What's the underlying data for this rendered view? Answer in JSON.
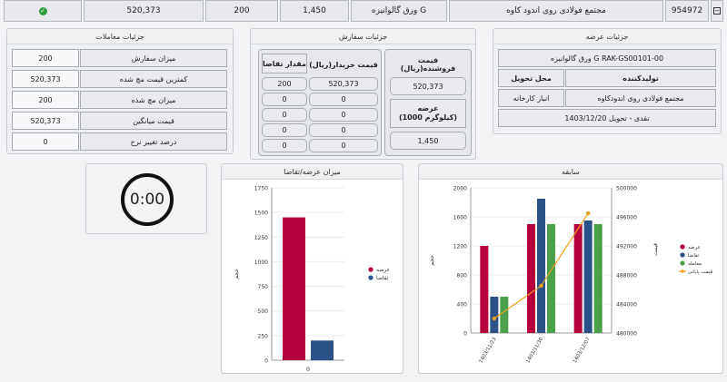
{
  "topbar": {
    "toggle_icon": "minus-square-icon",
    "id": "954972",
    "title": "مجتمع فولادی روی اندود کاوه",
    "product": "ورق گالوانیزه G",
    "price": "1,450",
    "qty": "200",
    "amount": "520,373",
    "status_icon": "check-circle-icon"
  },
  "offer": {
    "title": "جزئیات عرضه",
    "product": "ورق گالوانیزه G RAK-GS00101-00",
    "producer_label": "تولیدکننده",
    "delivery_label": "محل تحویل",
    "producer_value": "مجتمع فولادی روی اندودکاوه",
    "delivery_value": "انبار کارخانه",
    "terms": "نقدی - تحویل 1403/12/20"
  },
  "order": {
    "title": "جزئیات سفارش",
    "seller_price_label": "قیمت فروشنده(ریال)",
    "seller_price_value": "520,373",
    "supply_label": "عرضه\n(1000 کیلوگرم)",
    "supply_value": "1,450",
    "buyer_price_label": "قیمت خریدار(ریال)",
    "demand_label": "مقدار تقاضا",
    "rows": [
      {
        "price": "520,373",
        "qty": "200"
      },
      {
        "price": "0",
        "qty": "0"
      },
      {
        "price": "0",
        "qty": "0"
      },
      {
        "price": "0",
        "qty": "0"
      },
      {
        "price": "0",
        "qty": "0"
      }
    ]
  },
  "trades": {
    "title": "جزئیات معاملات",
    "rows": [
      {
        "label": "میزان سفارش",
        "value": "200"
      },
      {
        "label": "کمترین قیمت مچ شده",
        "value": "520,373"
      },
      {
        "label": "میزان مچ شده",
        "value": "200"
      },
      {
        "label": "قیمت میانگین",
        "value": "520,373"
      },
      {
        "label": "درصد تغییر نرخ",
        "value": "0"
      }
    ]
  },
  "timer": {
    "value": "0:00"
  },
  "chart_data": [
    {
      "type": "bar",
      "title": "میزان عرضه/تقاضا",
      "categories": [
        "0"
      ],
      "ylabel": "حجم",
      "ylim": [
        0,
        1750
      ],
      "yticks": [
        0,
        250,
        500,
        750,
        1000,
        1250,
        1500,
        1750
      ],
      "legend": "right",
      "series": [
        {
          "name": "عرضه",
          "color": "#b5003c",
          "values": [
            1450
          ]
        },
        {
          "name": "تقاضا",
          "color": "#2c5187",
          "values": [
            200
          ]
        }
      ]
    },
    {
      "type": "bar",
      "title": "سابقه",
      "categories": [
        "1403/11/23",
        "1403/11/30",
        "1403/12/07"
      ],
      "ylabel": "حجم",
      "y2label": "قیمت",
      "ylim": [
        0,
        2000
      ],
      "yticks": [
        0,
        400,
        800,
        1200,
        1600,
        2000
      ],
      "y2lim": [
        480000,
        500000
      ],
      "y2ticks": [
        480000,
        484000,
        488000,
        492000,
        496000,
        500000
      ],
      "legend": "right",
      "series": [
        {
          "name": "عرضه",
          "color": "#b5003c",
          "values": [
            1200,
            1500,
            1500
          ]
        },
        {
          "name": "تقاضا",
          "color": "#2c5187",
          "values": [
            500,
            1850,
            1550
          ]
        },
        {
          "name": "معامله",
          "color": "#4aa14a",
          "values": [
            500,
            1500,
            1500
          ]
        }
      ],
      "line": {
        "name": "قیمت پایانی",
        "color": "#f0a020",
        "values": [
          482000,
          486500,
          496500
        ]
      }
    }
  ]
}
